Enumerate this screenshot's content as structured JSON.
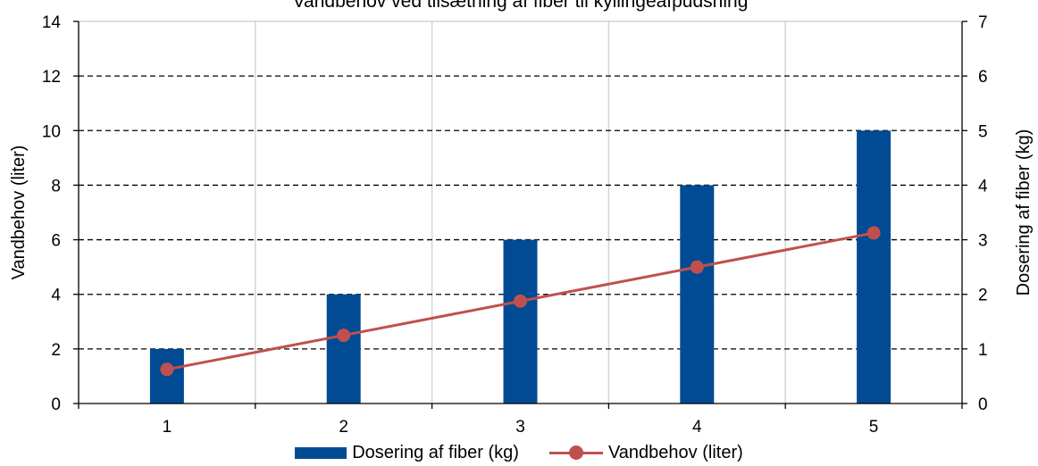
{
  "chart_data": {
    "type": "bar+line",
    "title": "Vandbehov ved tilsætning af fiber til kyllingeafpudsning",
    "categories": [
      "1",
      "2",
      "3",
      "4",
      "5"
    ],
    "series": [
      {
        "name": "Dosering af fiber (kg)",
        "type": "bar",
        "axis": "right",
        "color": "#004b93",
        "values": [
          1,
          2,
          3,
          4,
          5
        ]
      },
      {
        "name": "Vandbehov (liter)",
        "type": "line",
        "axis": "left",
        "color": "#c0504d",
        "values": [
          1.25,
          2.5,
          3.75,
          5,
          6.25
        ]
      }
    ],
    "y_left": {
      "label": "Vandbehov (liter)",
      "lim": [
        0,
        14
      ],
      "ticks": [
        "0",
        "2",
        "4",
        "6",
        "8",
        "10",
        "12",
        "14"
      ]
    },
    "y_right": {
      "label": "Dosering af fiber (kg)",
      "lim": [
        0,
        7
      ],
      "ticks": [
        "0",
        "1",
        "2",
        "3",
        "4",
        "5",
        "6",
        "7"
      ]
    },
    "grid": {
      "horizontal": "dashed",
      "vertical": "solid-light"
    },
    "legend_position": "bottom"
  }
}
